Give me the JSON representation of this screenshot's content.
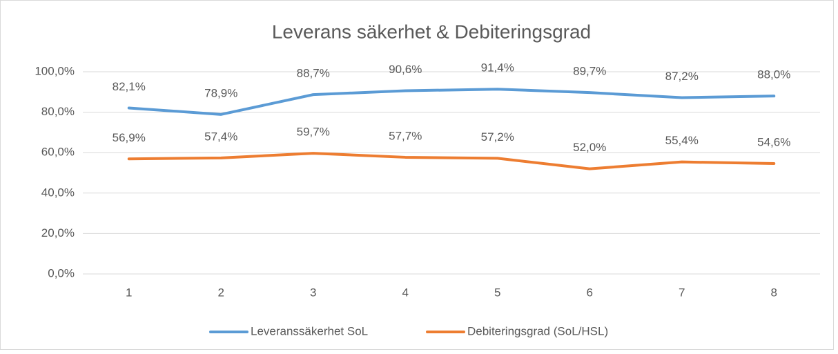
{
  "chart_data": {
    "type": "line",
    "title": "Leverans säkerhet & Debiteringsgrad",
    "categories": [
      "1",
      "2",
      "3",
      "4",
      "5",
      "6",
      "7",
      "8"
    ],
    "series": [
      {
        "name": "Leveranssäkerhet SoL",
        "color": "#5b9bd5",
        "values": [
          82.1,
          78.9,
          88.7,
          90.6,
          91.4,
          89.7,
          87.2,
          88.0
        ],
        "value_labels": [
          "82,1%",
          "78,9%",
          "88,7%",
          "90,6%",
          "91,4%",
          "89,7%",
          "87,2%",
          "88,0%"
        ]
      },
      {
        "name": "Debiteringsgrad (SoL/HSL)",
        "color": "#ed7d31",
        "values": [
          56.9,
          57.4,
          59.7,
          57.7,
          57.2,
          52.0,
          55.4,
          54.6
        ],
        "value_labels": [
          "56,9%",
          "57,4%",
          "59,7%",
          "57,7%",
          "57,2%",
          "52,0%",
          "55,4%",
          "54,6%"
        ]
      }
    ],
    "ylim": [
      0,
      100
    ],
    "yticks": [
      {
        "value": 0,
        "label": "0,0%"
      },
      {
        "value": 20,
        "label": "20,0%"
      },
      {
        "value": 40,
        "label": "40,0%"
      },
      {
        "value": 60,
        "label": "60,0%"
      },
      {
        "value": 80,
        "label": "80,0%"
      },
      {
        "value": 100,
        "label": "100,0%"
      }
    ],
    "grid": true,
    "legend": "bottom"
  }
}
